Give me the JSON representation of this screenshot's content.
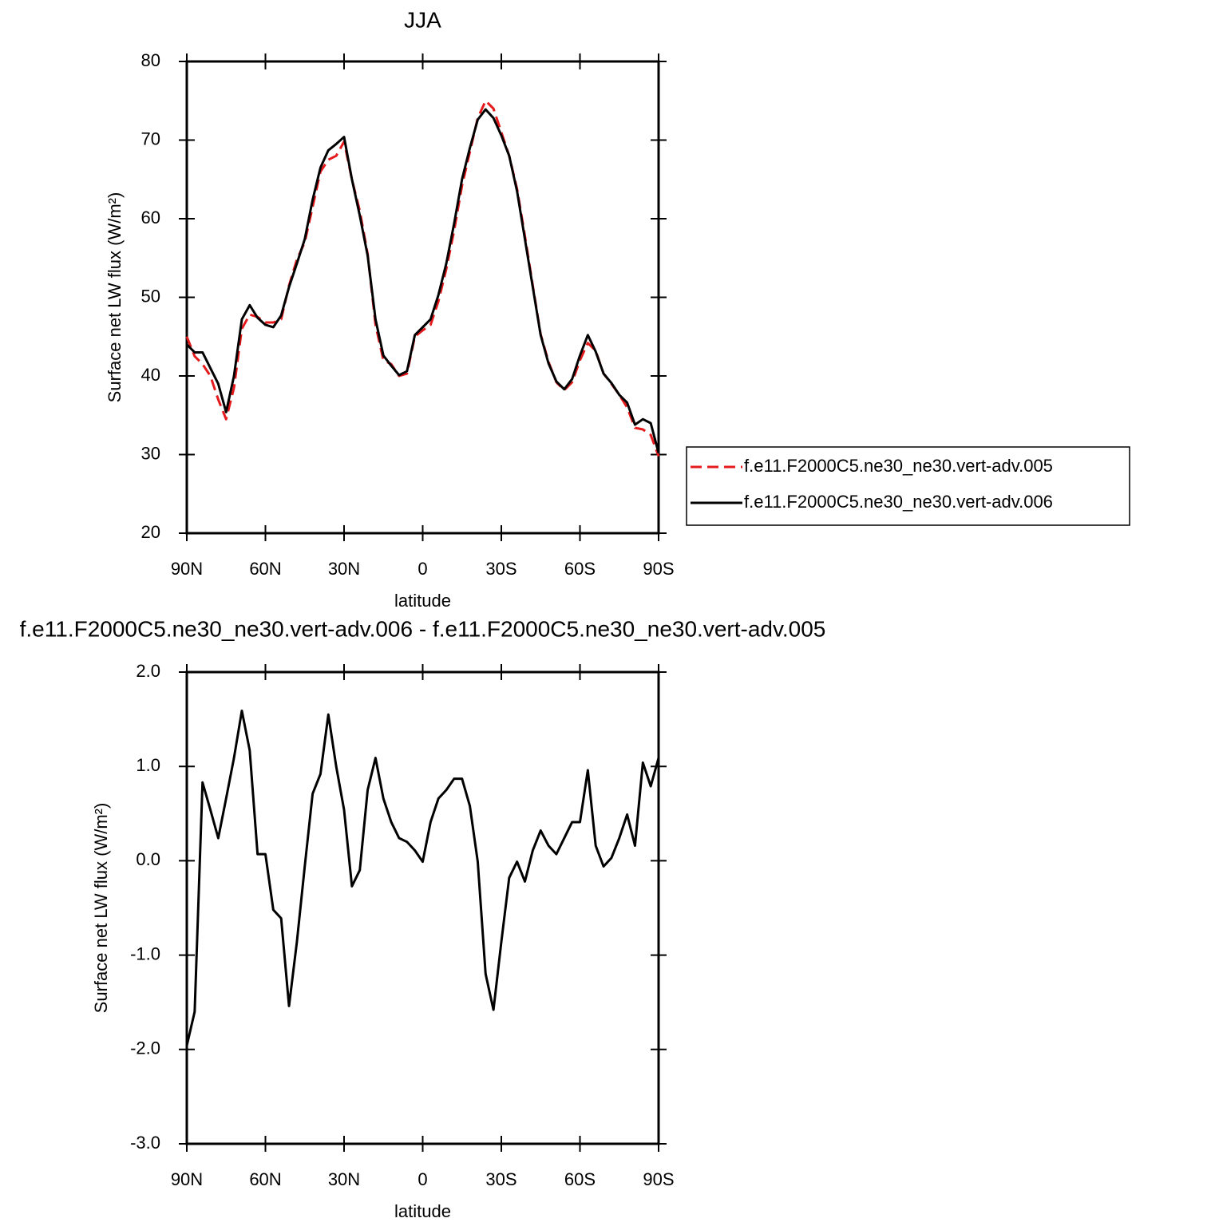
{
  "chart_data": [
    {
      "type": "line",
      "title": "JJA",
      "ylabel": "Surface net LW flux (W/m²)",
      "xlabel": "latitude",
      "x": [
        90,
        87,
        84,
        81,
        78,
        75,
        72,
        69,
        66,
        63,
        60,
        57,
        54,
        51,
        48,
        45,
        42,
        39,
        36,
        33,
        30,
        27,
        24,
        21,
        18,
        15,
        12,
        9,
        6,
        3,
        0,
        -3,
        -6,
        -9,
        -12,
        -15,
        -18,
        -21,
        -24,
        -27,
        -30,
        -33,
        -36,
        -39,
        -42,
        -45,
        -48,
        -51,
        -54,
        -57,
        -60,
        -63,
        -66,
        -69,
        -72,
        -75,
        -78,
        -81,
        -84,
        -87,
        -90
      ],
      "xlim": [
        90,
        -90
      ],
      "xticks": [
        {
          "value": 90,
          "label": "90N"
        },
        {
          "value": 60,
          "label": "60N"
        },
        {
          "value": 30,
          "label": "30N"
        },
        0,
        {
          "value": -30,
          "label": "30S"
        },
        {
          "value": -60,
          "label": "60S"
        },
        {
          "value": -90,
          "label": "90S"
        }
      ],
      "ylim": [
        20,
        80
      ],
      "yticks": [
        20,
        30,
        40,
        50,
        60,
        70,
        80
      ],
      "legend": "right",
      "series": [
        {
          "name": "f.e11.F2000C5.ne30_ne30.vert-adv.005",
          "color": "#e41a1c",
          "style": "dashed",
          "values": [
            45.0,
            42.5,
            41.5,
            40.0,
            37.0,
            34.5,
            38.5,
            46.0,
            47.8,
            47.5,
            46.8,
            46.8,
            47.2,
            51.5,
            54.8,
            57.0,
            61.5,
            66.0,
            67.5,
            68.0,
            69.8,
            65.0,
            61.0,
            55.5,
            46.5,
            42.0,
            41.5,
            40.0,
            40.3,
            45.0,
            45.8,
            46.5,
            49.5,
            53.6,
            58.5,
            64.2,
            68.5,
            72.8,
            75.0,
            74.0,
            71.0,
            68.0,
            63.8,
            57.8,
            51.5,
            45.3,
            41.8,
            39.2,
            38.2,
            39.2,
            42.0,
            44.2,
            43.2,
            40.3,
            39.0,
            37.6,
            36.0,
            33.4,
            33.2,
            32.5,
            29.8
          ]
        },
        {
          "name": "f.e11.F2000C5.ne30_ne30.vert-adv.006",
          "color": "#000000",
          "style": "solid",
          "values": [
            44.0,
            43.0,
            43.0,
            41.0,
            39.0,
            35.4,
            40.0,
            47.2,
            49.0,
            47.4,
            46.5,
            46.2,
            47.7,
            51.3,
            54.3,
            57.4,
            62.4,
            66.5,
            68.7,
            69.5,
            70.4,
            65.0,
            60.4,
            55.3,
            47.2,
            42.6,
            41.3,
            40.1,
            40.6,
            45.2,
            46.2,
            47.2,
            50.3,
            54.3,
            59.4,
            65.0,
            69.0,
            72.6,
            73.9,
            72.8,
            70.6,
            68.0,
            63.5,
            57.4,
            51.3,
            45.2,
            41.6,
            39.3,
            38.3,
            39.6,
            42.6,
            45.2,
            43.1,
            40.3,
            39.1,
            37.6,
            36.6,
            33.8,
            34.5,
            34.0,
            30.2
          ]
        }
      ]
    },
    {
      "type": "line",
      "title": "f.e11.F2000C5.ne30_ne30.vert-adv.006 - f.e11.F2000C5.ne30_ne30.vert-adv.005",
      "ylabel": "Surface net LW flux (W/m²)",
      "xlabel": "latitude",
      "x": [
        90,
        87,
        84,
        81,
        78,
        75,
        72,
        69,
        66,
        63,
        60,
        57,
        54,
        51,
        48,
        45,
        42,
        39,
        36,
        33,
        30,
        27,
        24,
        21,
        18,
        15,
        12,
        9,
        6,
        3,
        0,
        -3,
        -6,
        -9,
        -12,
        -15,
        -18,
        -21,
        -24,
        -27,
        -30,
        -33,
        -36,
        -39,
        -42,
        -45,
        -48,
        -51,
        -54,
        -57,
        -60,
        -63,
        -66,
        -69,
        -72,
        -75,
        -78,
        -81,
        -84,
        -87,
        -90
      ],
      "xlim": [
        90,
        -90
      ],
      "xticks": [
        {
          "value": 90,
          "label": "90N"
        },
        {
          "value": 60,
          "label": "60N"
        },
        {
          "value": 30,
          "label": "30N"
        },
        0,
        {
          "value": -30,
          "label": "30S"
        },
        {
          "value": -60,
          "label": "60S"
        },
        {
          "value": -90,
          "label": "90S"
        }
      ],
      "ylim": [
        -3,
        2
      ],
      "yticks": [
        {
          "value": -3,
          "label": "-3.0"
        },
        {
          "value": -2,
          "label": "-2.0"
        },
        {
          "value": -1,
          "label": "-1.0"
        },
        {
          "value": 0,
          "label": "0.0"
        },
        {
          "value": 1,
          "label": "1.0"
        },
        {
          "value": 2,
          "label": "2.0"
        }
      ],
      "series": [
        {
          "color": "#000000",
          "style": "solid",
          "values": [
            -1.96,
            -1.6,
            0.83,
            0.54,
            0.24,
            0.66,
            1.09,
            1.59,
            1.17,
            0.07,
            0.07,
            -0.52,
            -0.61,
            -1.54,
            -0.86,
            -0.06,
            0.71,
            0.92,
            1.55,
            1.0,
            0.54,
            -0.27,
            -0.1,
            0.75,
            1.09,
            0.66,
            0.41,
            0.24,
            0.2,
            0.11,
            -0.01,
            0.41,
            0.66,
            0.75,
            0.87,
            0.87,
            0.58,
            -0.01,
            -1.2,
            -1.58,
            -0.86,
            -0.18,
            -0.01,
            -0.22,
            0.11,
            0.32,
            0.16,
            0.07,
            0.24,
            0.41,
            0.41,
            0.96,
            0.16,
            -0.06,
            0.03,
            0.24,
            0.49,
            0.16,
            1.04,
            0.79,
            1.09
          ]
        }
      ]
    }
  ]
}
